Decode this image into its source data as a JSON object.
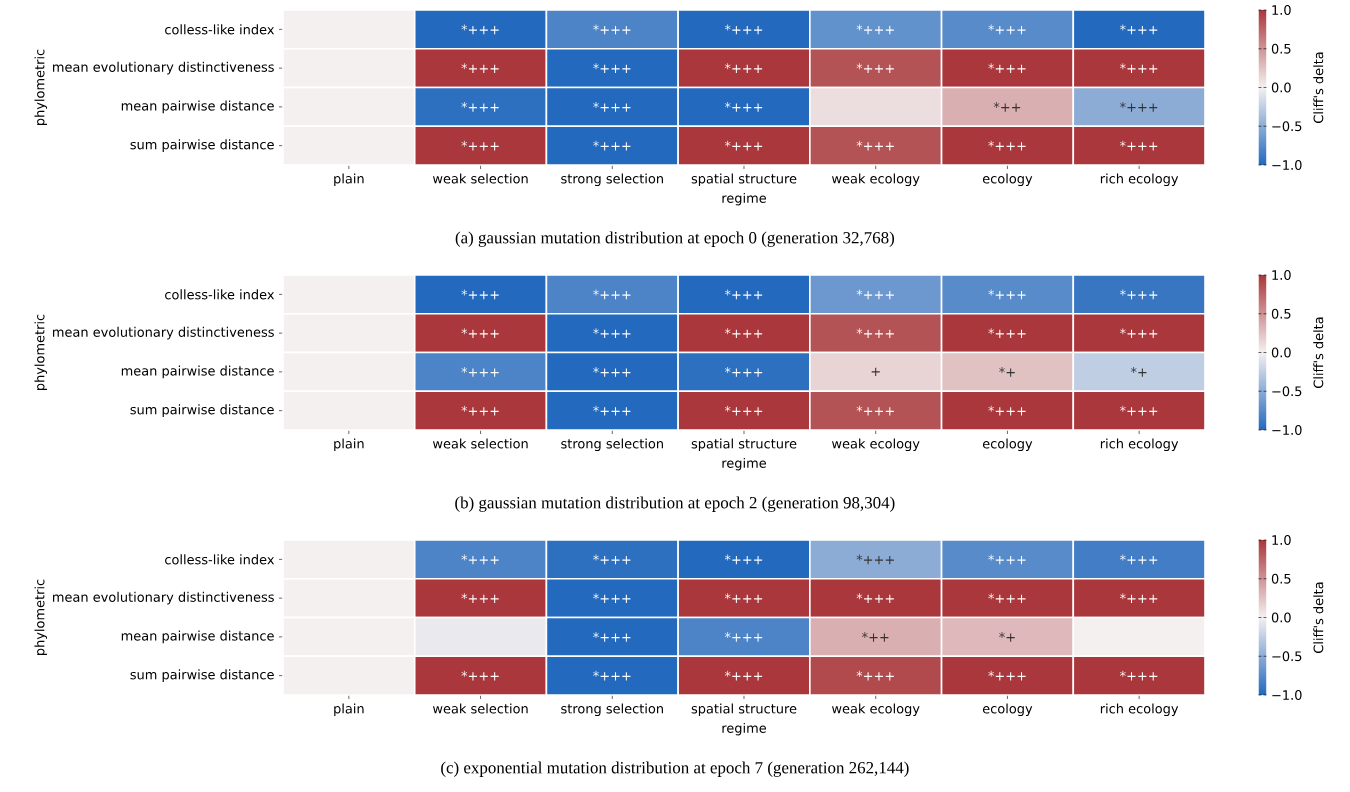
{
  "chart_data": [
    {
      "type": "heatmap",
      "xlabel": "regime",
      "ylabel": "phylometric",
      "clabel": "Cliff's delta",
      "categories": [
        "plain",
        "weak selection",
        "strong selection",
        "spatial structure",
        "weak ecology",
        "ecology",
        "rich ecology"
      ],
      "y_categories": [
        "colless-like index",
        "mean evolutionary distinctiveness",
        "mean pairwise distance",
        "sum pairwise distance"
      ],
      "cells": [
        [
          0,
          -1,
          -0.8,
          -1,
          -0.7,
          -0.75,
          -1
        ],
        [
          0,
          1,
          -1,
          1,
          0.85,
          1,
          1
        ],
        [
          0,
          -0.95,
          -1,
          -1,
          0.1,
          0.35,
          -0.5
        ],
        [
          0,
          1,
          -1,
          1,
          0.85,
          1,
          1
        ]
      ],
      "cell_labels": [
        [
          null,
          "*+++",
          "*+++",
          "*+++",
          "*+++",
          "*+++",
          "*+++"
        ],
        [
          null,
          "*+++",
          "*+++",
          "*+++",
          "*+++",
          "*+++",
          "*+++"
        ],
        [
          null,
          "*+++",
          "*+++",
          "*+++",
          null,
          "*++",
          "*+++"
        ],
        [
          null,
          "*+++",
          "*+++",
          "*+++",
          "*+++",
          "*+++",
          "*+++"
        ]
      ],
      "clim": [
        -1,
        1
      ],
      "cticks": [
        {
          "value": -1,
          "label": "−1.0"
        },
        {
          "value": -0.5,
          "label": "−0.5"
        },
        {
          "value": 0,
          "label": "0.0"
        },
        {
          "value": 0.5,
          "label": "0.5"
        },
        {
          "value": 1,
          "label": "1.0"
        }
      ],
      "annotations": [
        "(a) gaussian mutation distribution at epoch 0 (generation 32,768)"
      ]
    },
    {
      "type": "heatmap",
      "xlabel": "regime",
      "ylabel": "phylometric",
      "clabel": "Cliff's delta",
      "categories": [
        "plain",
        "weak selection",
        "strong selection",
        "spatial structure",
        "weak ecology",
        "ecology",
        "rich ecology"
      ],
      "y_categories": [
        "colless-like index",
        "mean evolutionary distinctiveness",
        "mean pairwise distance",
        "sum pairwise distance"
      ],
      "cells": [
        [
          0,
          -1,
          -0.8,
          -1,
          -0.65,
          -0.75,
          -0.9
        ],
        [
          0,
          1,
          -1,
          1,
          0.85,
          1,
          1
        ],
        [
          0,
          -0.8,
          -1,
          -0.95,
          0.15,
          0.25,
          -0.25
        ],
        [
          0,
          1,
          -1,
          1,
          0.85,
          1,
          1
        ]
      ],
      "cell_labels": [
        [
          null,
          "*+++",
          "*+++",
          "*+++",
          "*+++",
          "*+++",
          "*+++"
        ],
        [
          null,
          "*+++",
          "*+++",
          "*+++",
          "*+++",
          "*+++",
          "*+++"
        ],
        [
          null,
          "*+++",
          "*+++",
          "*+++",
          "+",
          "*+",
          "*+"
        ],
        [
          null,
          "*+++",
          "*+++",
          "*+++",
          "*+++",
          "*+++",
          "*+++"
        ]
      ],
      "clim": [
        -1,
        1
      ],
      "cticks": [
        {
          "value": -1,
          "label": "−1.0"
        },
        {
          "value": -0.5,
          "label": "−0.5"
        },
        {
          "value": 0,
          "label": "0.0"
        },
        {
          "value": 0.5,
          "label": "0.5"
        },
        {
          "value": 1,
          "label": "1.0"
        }
      ],
      "annotations": [
        "(b) gaussian mutation distribution at epoch 2 (generation 98,304)"
      ]
    },
    {
      "type": "heatmap",
      "xlabel": "regime",
      "ylabel": "phylometric",
      "clabel": "Cliff's delta",
      "categories": [
        "plain",
        "weak selection",
        "strong selection",
        "spatial structure",
        "weak ecology",
        "ecology",
        "rich ecology"
      ],
      "y_categories": [
        "colless-like index",
        "mean evolutionary distinctiveness",
        "mean pairwise distance",
        "sum pairwise distance"
      ],
      "cells": [
        [
          0,
          -0.8,
          -0.95,
          -1,
          -0.5,
          -0.75,
          -0.85
        ],
        [
          0,
          1,
          -1,
          1,
          1,
          1,
          1
        ],
        [
          0,
          -0.05,
          -1,
          -0.8,
          0.35,
          0.3,
          0
        ],
        [
          0,
          1,
          -1,
          1,
          0.9,
          1,
          1
        ]
      ],
      "cell_labels": [
        [
          null,
          "*+++",
          "*+++",
          "*+++",
          "*+++",
          "*+++",
          "*+++"
        ],
        [
          null,
          "*+++",
          "*+++",
          "*+++",
          "*+++",
          "*+++",
          "*+++"
        ],
        [
          null,
          null,
          "*+++",
          "*+++",
          "*++",
          "*+",
          null
        ],
        [
          null,
          "*+++",
          "*+++",
          "*+++",
          "*+++",
          "*+++",
          "*+++"
        ]
      ],
      "clim": [
        -1,
        1
      ],
      "cticks": [
        {
          "value": -1,
          "label": "−1.0"
        },
        {
          "value": -0.5,
          "label": "−0.5"
        },
        {
          "value": 0,
          "label": "0.0"
        },
        {
          "value": 0.5,
          "label": "0.5"
        },
        {
          "value": 1,
          "label": "1.0"
        }
      ],
      "annotations": [
        "(c) exponential mutation distribution at epoch 7 (generation 262,144)"
      ]
    }
  ]
}
